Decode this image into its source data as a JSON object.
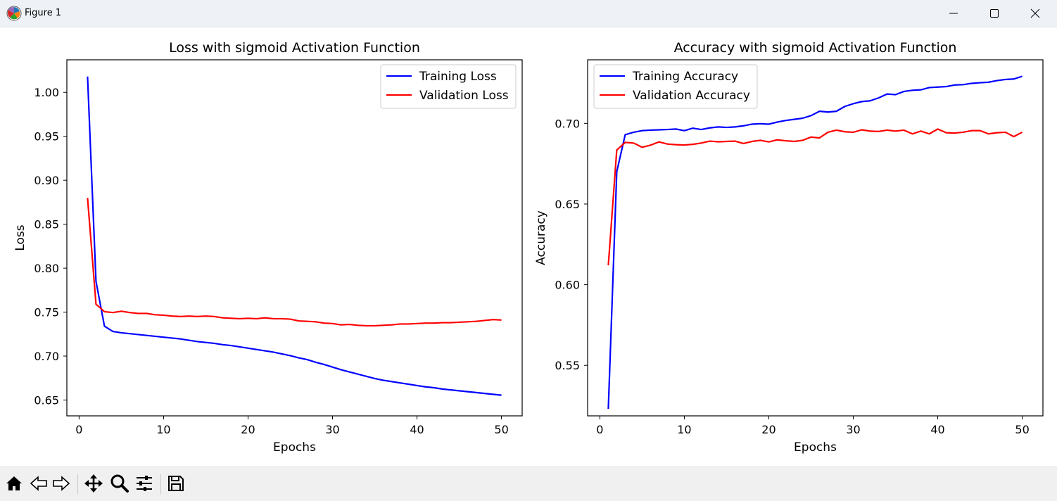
{
  "window": {
    "title": "Figure 1",
    "icons": [
      "matplotlib-logo-icon",
      "minimize-icon",
      "maximize-icon",
      "close-icon"
    ]
  },
  "toolbar": {
    "buttons": [
      "home-icon",
      "back-icon",
      "forward-icon",
      "pan-icon",
      "zoom-icon",
      "configure-subplots-icon",
      "save-icon"
    ]
  },
  "colors": {
    "training": "#0000ff",
    "validation": "#ff0000"
  },
  "chart_data": [
    {
      "type": "line",
      "title": "Loss with sigmoid Activation Function",
      "xlabel": "Epochs",
      "ylabel": "Loss",
      "xlim": [
        -1.45,
        52.45
      ],
      "ylim": [
        0.632,
        1.037
      ],
      "xticks": [
        0,
        10,
        20,
        30,
        40,
        50
      ],
      "yticks": [
        0.65,
        0.7,
        0.75,
        0.8,
        0.85,
        0.9,
        0.95,
        1.0
      ],
      "ytick_labels": [
        "0.65",
        "0.70",
        "0.75",
        "0.80",
        "0.85",
        "0.90",
        "0.95",
        "1.00"
      ],
      "legend": "upper right",
      "grid": false,
      "x": [
        1,
        2,
        3,
        4,
        5,
        6,
        7,
        8,
        9,
        10,
        11,
        12,
        13,
        14,
        15,
        16,
        17,
        18,
        19,
        20,
        21,
        22,
        23,
        24,
        25,
        26,
        27,
        28,
        29,
        30,
        31,
        32,
        33,
        34,
        35,
        36,
        37,
        38,
        39,
        40,
        41,
        42,
        43,
        44,
        45,
        46,
        47,
        48,
        49,
        50
      ],
      "series": [
        {
          "name": "Training Loss",
          "color": "#0000ff",
          "values": [
            1.018,
            0.785,
            0.734,
            0.728,
            0.7265,
            0.7255,
            0.7245,
            0.7235,
            0.7225,
            0.7215,
            0.7205,
            0.7195,
            0.718,
            0.7165,
            0.7155,
            0.7145,
            0.713,
            0.712,
            0.7105,
            0.709,
            0.7075,
            0.706,
            0.7045,
            0.7025,
            0.7005,
            0.698,
            0.696,
            0.693,
            0.6905,
            0.6875,
            0.6845,
            0.682,
            0.6795,
            0.677,
            0.6745,
            0.6725,
            0.671,
            0.6695,
            0.668,
            0.6665,
            0.665,
            0.664,
            0.6625,
            0.6615,
            0.6605,
            0.6595,
            0.6585,
            0.6575,
            0.6565,
            0.6555
          ]
        },
        {
          "name": "Validation Loss",
          "color": "#ff0000",
          "values": [
            0.88,
            0.759,
            0.7505,
            0.7495,
            0.751,
            0.7495,
            0.7485,
            0.7485,
            0.747,
            0.7465,
            0.7455,
            0.745,
            0.7455,
            0.745,
            0.7455,
            0.745,
            0.7435,
            0.743,
            0.7425,
            0.743,
            0.7425,
            0.7435,
            0.7425,
            0.7425,
            0.742,
            0.74,
            0.7395,
            0.739,
            0.7375,
            0.737,
            0.7355,
            0.736,
            0.735,
            0.7345,
            0.7345,
            0.735,
            0.7355,
            0.7365,
            0.7365,
            0.737,
            0.7375,
            0.7375,
            0.738,
            0.738,
            0.7385,
            0.739,
            0.7395,
            0.7405,
            0.7415,
            0.741
          ]
        }
      ]
    },
    {
      "type": "line",
      "title": "Accuracy with sigmoid Activation Function",
      "xlabel": "Epochs",
      "ylabel": "Accuracy",
      "xlim": [
        -1.45,
        52.45
      ],
      "ylim": [
        0.5187,
        0.7394
      ],
      "xticks": [
        0,
        10,
        20,
        30,
        40,
        50
      ],
      "yticks": [
        0.55,
        0.6,
        0.65,
        0.7
      ],
      "ytick_labels": [
        "0.55",
        "0.60",
        "0.65",
        "0.70"
      ],
      "legend": "upper left",
      "grid": false,
      "x": [
        1,
        2,
        3,
        4,
        5,
        6,
        7,
        8,
        9,
        10,
        11,
        12,
        13,
        14,
        15,
        16,
        17,
        18,
        19,
        20,
        21,
        22,
        23,
        24,
        25,
        26,
        27,
        28,
        29,
        30,
        31,
        32,
        33,
        34,
        35,
        36,
        37,
        38,
        39,
        40,
        41,
        42,
        43,
        44,
        45,
        46,
        47,
        48,
        49,
        50
      ],
      "series": [
        {
          "name": "Training Accuracy",
          "color": "#0000ff",
          "values": [
            0.523,
            0.67,
            0.693,
            0.6945,
            0.6955,
            0.6958,
            0.696,
            0.6962,
            0.6965,
            0.6955,
            0.697,
            0.6962,
            0.6972,
            0.6978,
            0.6975,
            0.6978,
            0.6985,
            0.6995,
            0.6998,
            0.6995,
            0.7008,
            0.7018,
            0.7025,
            0.7032,
            0.7048,
            0.7075,
            0.707,
            0.7075,
            0.7105,
            0.7122,
            0.7135,
            0.714,
            0.7158,
            0.7182,
            0.7178,
            0.7198,
            0.7205,
            0.7208,
            0.7222,
            0.7225,
            0.7228,
            0.7238,
            0.724,
            0.7248,
            0.7252,
            0.7255,
            0.7265,
            0.7272,
            0.7275,
            0.7292
          ]
        },
        {
          "name": "Validation Accuracy",
          "color": "#ff0000",
          "values": [
            0.612,
            0.6835,
            0.6882,
            0.6878,
            0.6852,
            0.6865,
            0.6885,
            0.6872,
            0.6868,
            0.6866,
            0.687,
            0.6878,
            0.689,
            0.6886,
            0.6888,
            0.689,
            0.6875,
            0.6888,
            0.6895,
            0.6885,
            0.6898,
            0.6892,
            0.6888,
            0.6895,
            0.6915,
            0.691,
            0.6945,
            0.6958,
            0.6948,
            0.6945,
            0.696,
            0.6952,
            0.695,
            0.6958,
            0.6952,
            0.6958,
            0.6935,
            0.6952,
            0.6935,
            0.6965,
            0.6942,
            0.694,
            0.6945,
            0.6955,
            0.6955,
            0.6935,
            0.6942,
            0.6945,
            0.6918,
            0.6945
          ]
        }
      ]
    }
  ]
}
